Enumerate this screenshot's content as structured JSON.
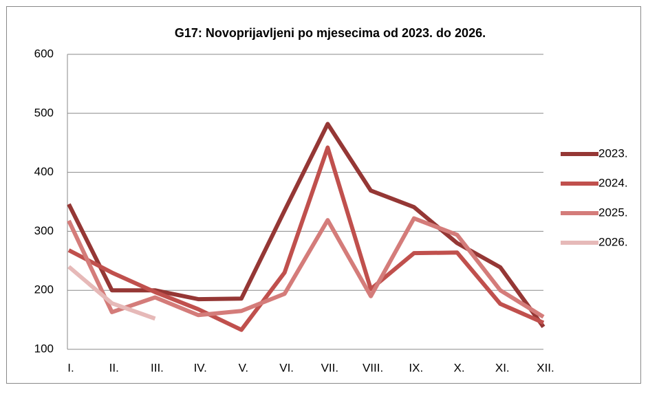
{
  "chart_data": {
    "type": "line",
    "title": "G17: Novoprijavljeni po mjesecima od 2023. do 2026.",
    "categories": [
      "I.",
      "II.",
      "III.",
      "IV.",
      "V.",
      "VI.",
      "VII.",
      "VIII.",
      "IX.",
      "X.",
      "XI.",
      "XII."
    ],
    "series": [
      {
        "name": "2023.",
        "color": "#953735",
        "values": [
          346,
          200,
          200,
          185,
          186,
          335,
          482,
          369,
          341,
          280,
          239,
          138
        ]
      },
      {
        "name": "2024.",
        "color": "#c0504d",
        "values": [
          268,
          230,
          197,
          168,
          133,
          230,
          442,
          202,
          263,
          264,
          177,
          145
        ]
      },
      {
        "name": "2025.",
        "color": "#d47c7a",
        "values": [
          318,
          163,
          188,
          158,
          165,
          194,
          319,
          190,
          322,
          294,
          200,
          155
        ]
      },
      {
        "name": "2026.",
        "color": "#e6b9b8",
        "values": [
          240,
          178,
          152,
          null,
          null,
          null,
          null,
          null,
          null,
          null,
          null,
          null
        ]
      }
    ],
    "ylim": [
      100,
      600
    ],
    "yticks": [
      100,
      200,
      300,
      400,
      500,
      600
    ],
    "grid": true,
    "legend": "right"
  }
}
